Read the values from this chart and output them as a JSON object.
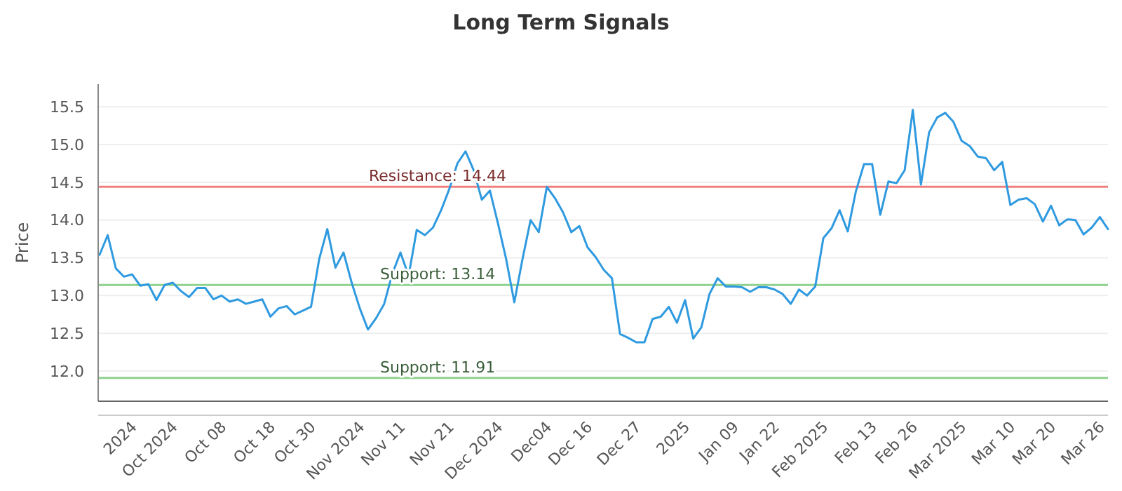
{
  "chart_data": {
    "type": "line",
    "title": "Long Term Signals",
    "ylabel": "Price",
    "categories": [
      null,
      null,
      null,
      null,
      "2024",
      null,
      null,
      null,
      null,
      "Oct 2024",
      null,
      null,
      null,
      null,
      null,
      "Oct 08",
      null,
      null,
      null,
      null,
      null,
      "Oct 18",
      null,
      null,
      null,
      null,
      "Oct 30",
      null,
      null,
      null,
      null,
      null,
      "Nov 2024",
      null,
      null,
      null,
      null,
      "Nov 11",
      null,
      null,
      null,
      null,
      null,
      "Nov 21",
      null,
      null,
      null,
      null,
      null,
      "Dec 2024",
      null,
      null,
      null,
      null,
      null,
      "Dec04",
      null,
      null,
      null,
      null,
      "Dec 16",
      null,
      null,
      null,
      null,
      null,
      "Dec 27",
      null,
      null,
      null,
      null,
      null,
      "2025",
      null,
      null,
      null,
      null,
      null,
      "Jan 09",
      null,
      null,
      null,
      null,
      "Jan 22",
      null,
      null,
      null,
      null,
      null,
      "Feb 2025",
      null,
      null,
      null,
      null,
      null,
      "Feb 13",
      null,
      null,
      null,
      null,
      "Feb 26",
      null,
      null,
      null,
      null,
      null,
      "Mar 2025",
      null,
      null,
      null,
      null,
      null,
      "Mar 10",
      null,
      null,
      null,
      null,
      "Mar 20",
      null,
      null,
      null,
      null,
      null,
      "Mar 26",
      null
    ],
    "series": [
      {
        "color": "#2f9ae0",
        "values": [
          13.54,
          13.8,
          13.36,
          13.25,
          13.28,
          13.13,
          13.15,
          12.94,
          13.14,
          13.17,
          13.06,
          12.98,
          13.1,
          13.1,
          12.95,
          13.0,
          12.92,
          12.95,
          12.89,
          12.92,
          12.95,
          12.72,
          12.83,
          12.86,
          12.75,
          12.8,
          12.85,
          13.48,
          13.88,
          13.37,
          13.57,
          13.17,
          12.83,
          12.55,
          12.7,
          12.89,
          13.29,
          13.57,
          13.26,
          13.87,
          13.8,
          13.9,
          14.13,
          14.41,
          14.75,
          14.91,
          14.66,
          14.27,
          14.39,
          13.95,
          13.48,
          12.91,
          13.48,
          14.0,
          13.84,
          14.44,
          14.29,
          14.1,
          13.84,
          13.92,
          13.64,
          13.51,
          13.34,
          13.23,
          12.49,
          12.44,
          12.38,
          12.38,
          12.69,
          12.72,
          12.85,
          12.64,
          12.94,
          12.43,
          12.58,
          13.02,
          13.23,
          13.12,
          13.12,
          13.11,
          13.05,
          13.11,
          13.11,
          13.08,
          13.02,
          12.89,
          13.08,
          13.0,
          13.12,
          13.76,
          13.89,
          14.13,
          13.85,
          14.38,
          14.74,
          14.74,
          14.07,
          14.51,
          14.49,
          14.66,
          15.46,
          14.47,
          15.16,
          15.36,
          15.42,
          15.3,
          15.05,
          14.98,
          14.84,
          14.82,
          14.66,
          14.77,
          14.2,
          14.27,
          14.29,
          14.21,
          13.98,
          14.19,
          13.93,
          14.01,
          14.0,
          13.81,
          13.9,
          14.04,
          13.88
        ]
      }
    ],
    "ylim": [
      11.6,
      15.8
    ],
    "yticks": [
      {
        "value": 12,
        "label": "12.0"
      },
      {
        "value": 12.5,
        "label": "12.5"
      },
      {
        "value": 13,
        "label": "13.0"
      },
      {
        "value": 13.5,
        "label": "13.5"
      },
      {
        "value": 14,
        "label": "14.0"
      },
      {
        "value": 14.5,
        "label": "14.5"
      },
      {
        "value": 15,
        "label": "15.0"
      },
      {
        "value": 15.5,
        "label": "15.5"
      }
    ],
    "grid": "y",
    "marker": "none",
    "line_style": "solid",
    "ref_lines": [
      {
        "axis": "y",
        "value": 14.44,
        "label": "Resistance: 14.44",
        "color": "#f08080"
      },
      {
        "axis": "y",
        "value": 13.14,
        "label": "Support: 13.14",
        "color": "#8fd18f"
      },
      {
        "axis": "y",
        "value": 11.91,
        "label": "Support: 11.91",
        "color": "#8fd18f"
      }
    ]
  }
}
